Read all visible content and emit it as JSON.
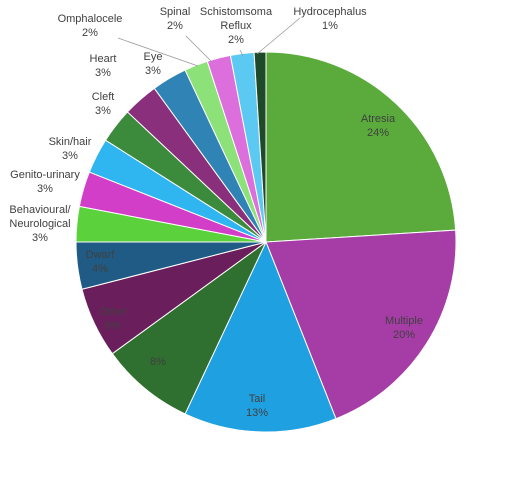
{
  "chart_data": {
    "type": "pie",
    "categories": [
      "Atresia",
      "Multiple",
      "Tail",
      null,
      "Other",
      "Dwarf",
      "Behavioural/\nNeurological",
      "Genito-urinary",
      "Skin/hair",
      "Cleft",
      "Heart",
      "Eye",
      "Omphalocele",
      "Spinal",
      "Schistomsoma\nReflux",
      "Hydrocephalus"
    ],
    "values": [
      24,
      20,
      13,
      8,
      6,
      4,
      3,
      3,
      3,
      3,
      3,
      3,
      2,
      2,
      2,
      1
    ],
    "value_labels": [
      "24%",
      "20%",
      "13%",
      "8%",
      "6%",
      "4%",
      "3%",
      "3%",
      "3%",
      "3%",
      "3%",
      "3%",
      "2%",
      "2%",
      "2%",
      "1%"
    ],
    "colors": [
      "#5aab3c",
      "#a63da6",
      "#1fa0e0",
      "#2f6f2f",
      "#6a1f5c",
      "#1f5b84",
      "#5bd23c",
      "#d23ec8",
      "#2fb5f0",
      "#3c8a3c",
      "#8a2f7b",
      "#2f83b5",
      "#8ce279",
      "#dc6fdc",
      "#5cc9f2",
      "#1f4a29"
    ]
  }
}
